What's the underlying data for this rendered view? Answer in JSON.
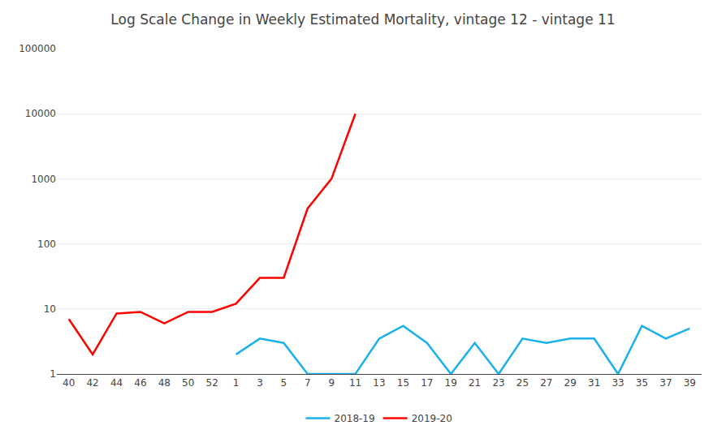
{
  "chart_data": {
    "type": "line",
    "title": "Log Scale Change in Weekly Estimated Mortality, vintage 12 - vintage 11",
    "categories": [
      "40",
      "42",
      "44",
      "46",
      "48",
      "50",
      "52",
      "1",
      "3",
      "5",
      "7",
      "9",
      "11",
      "13",
      "15",
      "17",
      "19",
      "21",
      "23",
      "25",
      "27",
      "29",
      "31",
      "33",
      "35",
      "37",
      "39"
    ],
    "series": [
      {
        "name": "2019-20",
        "color": "#FF0000",
        "values": [
          7.0,
          2.0,
          8.5,
          9.0,
          6.0,
          9.0,
          9.0,
          12.0,
          30.0,
          30.0,
          350.0,
          1000.0,
          10000.0,
          null,
          null,
          null,
          null,
          null,
          null,
          null,
          null,
          null,
          null,
          null,
          null,
          null,
          null
        ]
      },
      {
        "name": "2018-19",
        "color": "#1AAFED",
        "values": [
          null,
          null,
          null,
          null,
          null,
          null,
          null,
          2.0,
          3.5,
          3.0,
          1.0,
          1.0,
          1.0,
          3.5,
          5.5,
          3.0,
          1.0,
          3.0,
          1.0,
          3.5,
          3.0,
          3.5,
          3.5,
          1.0,
          5.5,
          3.5,
          5.0
        ]
      }
    ],
    "log": "y",
    "ylim": [
      1,
      100000
    ],
    "yticks": [
      1,
      10,
      100,
      1000,
      10000,
      100000
    ],
    "grid": true,
    "legend": "bottom"
  }
}
